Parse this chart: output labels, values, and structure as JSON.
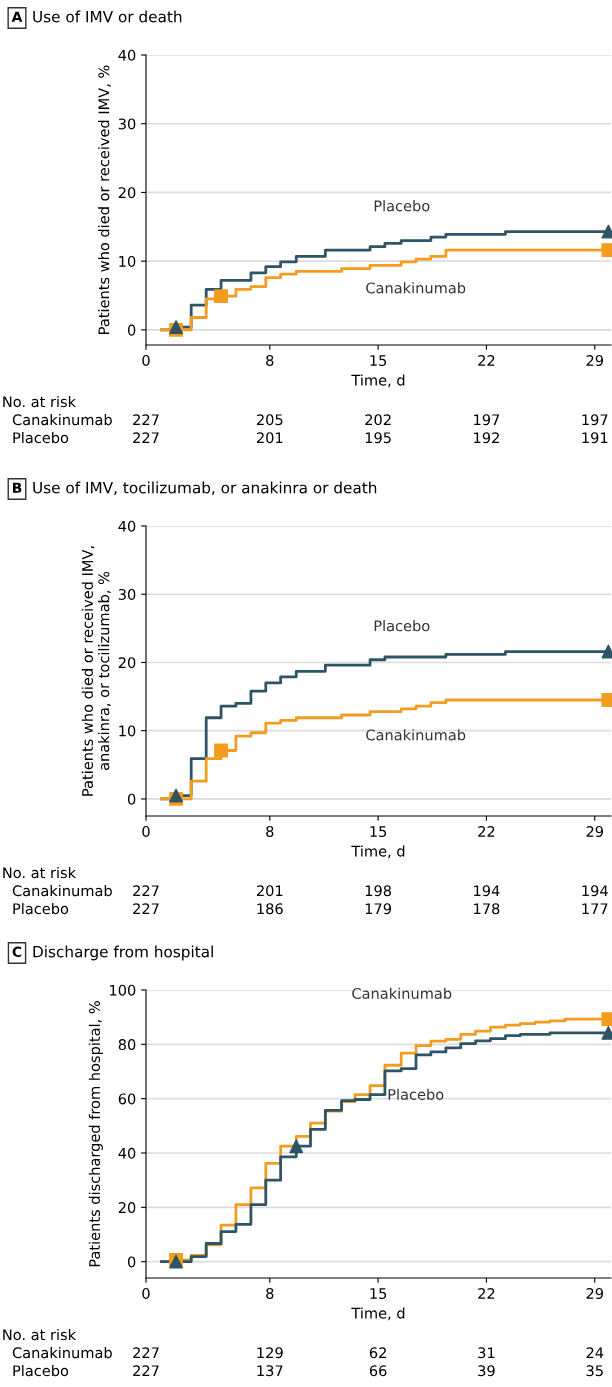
{
  "chart_data": [
    {
      "type": "step",
      "title": "Use of IMV or death",
      "xlabel": "Time, d",
      "ylabel": "Patients who died or received IMV, %",
      "xlim": [
        0,
        30.05
      ],
      "xticks": [
        0,
        8,
        15,
        22,
        29
      ],
      "ylim": [
        -2.2,
        40
      ],
      "yticks": [
        0,
        10,
        20,
        30,
        40
      ],
      "grid": "y",
      "series": [
        {
          "name": "Placebo",
          "color": "#2e5566",
          "x": [
            1,
            1.94,
            2.92,
            3.89,
            4.85,
            6.78,
            7.74,
            8.7,
            9.71,
            11.59,
            14.48,
            15.44,
            16.49,
            18.41,
            19.38,
            23.23,
            29.88
          ],
          "values": [
            0,
            0.4,
            3.6,
            5.9,
            7.2,
            8.3,
            9.2,
            9.9,
            10.7,
            11.6,
            12.1,
            12.6,
            13.0,
            13.5,
            13.9,
            14.3,
            14.3
          ]
        },
        {
          "name": "Canakinumab",
          "color": "#f39c1f",
          "x": [
            1,
            2.92,
            3.89,
            4.85,
            5.81,
            6.78,
            7.74,
            8.7,
            9.71,
            12.64,
            14.48,
            16.49,
            17.45,
            18.41,
            19.38,
            29.88
          ],
          "values": [
            0,
            1.8,
            4.5,
            4.9,
            5.9,
            6.3,
            7.6,
            8.1,
            8.5,
            8.9,
            9.4,
            9.9,
            10.3,
            10.7,
            11.6,
            11.6
          ]
        },
        {
          "type": "scatter",
          "marker": "triangle",
          "color": "#2e5566",
          "x": [
            1.94,
            29.88
          ],
          "values": [
            0.4,
            14.3
          ]
        },
        {
          "type": "scatter",
          "marker": "square",
          "color": "#f39c1f",
          "x": [
            1.94,
            4.85,
            29.88
          ],
          "values": [
            0,
            4.9,
            11.6
          ]
        }
      ],
      "annotations": [
        "A",
        "No. at risk",
        "Canakinumab",
        "227",
        "205",
        "202",
        "197",
        "197",
        "Placebo",
        "227",
        "201",
        "195",
        "192",
        "191"
      ]
    },
    {
      "type": "step",
      "title": "Use of IMV, tocilizumab, or anakinra or death",
      "xlabel": "Time, d",
      "ylabel": "Patients who died or received IMV,\nanakinra, or tocilizumab, %",
      "xlim": [
        0,
        30.05
      ],
      "xticks": [
        0,
        8,
        15,
        22,
        29
      ],
      "ylim": [
        -2.5,
        40
      ],
      "yticks": [
        0,
        10,
        20,
        30,
        40
      ],
      "grid": "y",
      "series": [
        {
          "name": "Placebo",
          "color": "#2e5566",
          "x": [
            1,
            1.94,
            2.92,
            3.89,
            4.85,
            5.81,
            6.78,
            7.74,
            8.7,
            9.71,
            11.59,
            14.48,
            15.44,
            19.38,
            23.23,
            29.88
          ],
          "values": [
            0,
            0.5,
            5.9,
            11.9,
            13.6,
            14.0,
            15.8,
            17.0,
            17.9,
            18.7,
            19.6,
            20.4,
            20.8,
            21.2,
            21.6,
            21.6
          ]
        },
        {
          "name": "Canakinumab",
          "color": "#f39c1f",
          "x": [
            1,
            2.92,
            3.89,
            4.85,
            5.81,
            6.78,
            7.74,
            8.7,
            9.71,
            12.64,
            14.48,
            16.49,
            17.45,
            18.41,
            19.38,
            29.88
          ],
          "values": [
            0,
            2.6,
            5.9,
            7.1,
            9.2,
            9.7,
            11.1,
            11.5,
            11.9,
            12.3,
            12.8,
            13.2,
            13.6,
            14.1,
            14.5,
            14.5
          ]
        },
        {
          "type": "scatter",
          "marker": "triangle",
          "color": "#2e5566",
          "x": [
            1.94,
            29.88
          ],
          "values": [
            0.5,
            21.6
          ]
        },
        {
          "type": "scatter",
          "marker": "square",
          "color": "#f39c1f",
          "x": [
            1.94,
            4.85,
            29.88
          ],
          "values": [
            0,
            7.1,
            14.5
          ]
        }
      ],
      "annotations": [
        "B",
        "No. at risk",
        "Canakinumab",
        "227",
        "201",
        "198",
        "194",
        "194",
        "Placebo",
        "227",
        "186",
        "179",
        "178",
        "177"
      ]
    },
    {
      "type": "step",
      "title": "Discharge from hospital",
      "xlabel": "Time, d",
      "ylabel": "Patients discharged from hospital, %",
      "xlim": [
        0,
        30.05
      ],
      "xticks": [
        0,
        8,
        15,
        22,
        29
      ],
      "ylim": [
        -6,
        100
      ],
      "yticks": [
        0,
        20,
        40,
        60,
        80,
        100
      ],
      "grid": "y",
      "series": [
        {
          "name": "Canakinumab",
          "color": "#f39c1f",
          "x": [
            1,
            1.94,
            2.92,
            3.89,
            4.85,
            5.81,
            6.78,
            7.74,
            8.7,
            9.71,
            10.63,
            11.59,
            12.64,
            13.51,
            14.48,
            15.44,
            16.49,
            17.45,
            18.41,
            19.38,
            20.34,
            21.3,
            22.26,
            23.23,
            24.19,
            25.15,
            26.11,
            27.08,
            29.88
          ],
          "values": [
            0,
            0.7,
            2.3,
            6.2,
            13.5,
            21.0,
            27.2,
            36.2,
            42.5,
            46.1,
            51.0,
            55.4,
            58.9,
            61.5,
            64.8,
            72.3,
            76.8,
            79.5,
            81.2,
            81.8,
            83.7,
            84.9,
            86.3,
            87.1,
            87.6,
            88.2,
            88.6,
            89.3,
            89.3
          ]
        },
        {
          "name": "Placebo",
          "color": "#2e5566",
          "x": [
            1,
            2.92,
            3.89,
            4.85,
            5.81,
            6.78,
            7.74,
            8.7,
            9.71,
            10.63,
            11.59,
            12.64,
            13.51,
            14.48,
            15.44,
            16.49,
            17.45,
            18.41,
            19.38,
            20.34,
            21.3,
            22.26,
            23.23,
            24.19,
            26.11,
            29.88
          ],
          "values": [
            0,
            1.9,
            6.7,
            11.1,
            13.7,
            21.0,
            30.0,
            38.6,
            42.5,
            48.7,
            55.7,
            59.3,
            59.7,
            61.5,
            70.2,
            71.1,
            76.1,
            77.2,
            78.7,
            80.3,
            81.3,
            82.1,
            83.2,
            83.7,
            84.2,
            84.2
          ]
        },
        {
          "type": "scatter",
          "marker": "square",
          "color": "#f39c1f",
          "x": [
            1.94,
            29.88
          ],
          "values": [
            0.7,
            89.3
          ]
        },
        {
          "type": "scatter",
          "marker": "triangle",
          "color": "#2e5566",
          "x": [
            1.94,
            9.71,
            29.88
          ],
          "values": [
            0,
            42.5,
            84.2
          ]
        }
      ],
      "annotations": [
        "C",
        "No. at risk",
        "Canakinumab",
        "227",
        "129",
        "62",
        "31",
        "24",
        "Placebo",
        "227",
        "137",
        "66",
        "39",
        "35"
      ]
    }
  ]
}
